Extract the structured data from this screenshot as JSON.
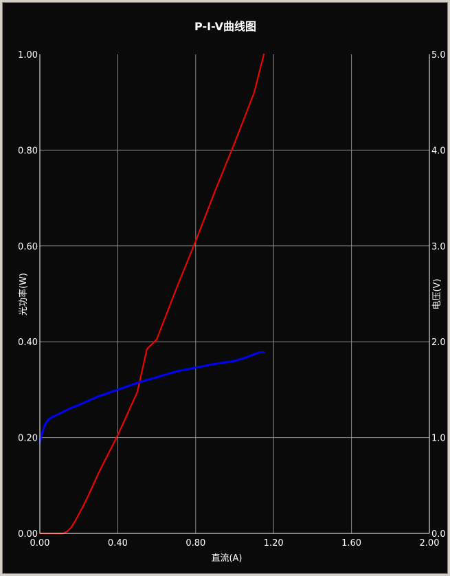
{
  "chart_data": {
    "type": "line",
    "title": "P-I-V曲线图",
    "xlabel": "直流(A)",
    "ylabel_left": "光功率(W)",
    "ylabel_right": "电压(V)",
    "xlim": [
      0.0,
      2.0
    ],
    "ylim_left": [
      0.0,
      1.0
    ],
    "ylim_right": [
      0.0,
      5.0
    ],
    "grid": true,
    "x_ticks": [
      "0.00",
      "0.40",
      "0.80",
      "1.20",
      "1.60",
      "2.00"
    ],
    "y_left_ticks": [
      "0.00",
      "0.20",
      "0.40",
      "0.60",
      "0.80",
      "1.00"
    ],
    "y_right_ticks": [
      "0.0",
      "1.0",
      "2.0",
      "3.0",
      "4.0",
      "5.0"
    ],
    "colors": {
      "background": "#0a0a0a",
      "grid": "#8c8c8c",
      "axis": "#ffffff",
      "power": "#ff0000",
      "voltage": "#0000ff"
    },
    "series": [
      {
        "axis": "left",
        "color": "#ff0000",
        "x": [
          0.0,
          0.12,
          0.14,
          0.16,
          0.18,
          0.2,
          0.22,
          0.25,
          0.3,
          0.35,
          0.4,
          0.45,
          0.5,
          0.55,
          0.6,
          0.7,
          0.8,
          0.9,
          1.0,
          1.1,
          1.15
        ],
        "y": [
          0.0,
          0.0,
          0.004,
          0.012,
          0.025,
          0.04,
          0.055,
          0.08,
          0.125,
          0.165,
          0.205,
          0.25,
          0.295,
          0.385,
          0.405,
          0.51,
          0.61,
          0.715,
          0.815,
          0.92,
          1.0
        ]
      },
      {
        "axis": "right",
        "color": "#0000ff",
        "x": [
          0.0,
          0.01,
          0.02,
          0.03,
          0.04,
          0.06,
          0.1,
          0.15,
          0.2,
          0.3,
          0.4,
          0.5,
          0.6,
          0.7,
          0.8,
          0.9,
          1.0,
          1.05,
          1.1,
          1.13,
          1.15
        ],
        "y": [
          0.95,
          1.03,
          1.1,
          1.15,
          1.18,
          1.21,
          1.25,
          1.3,
          1.34,
          1.43,
          1.5,
          1.57,
          1.63,
          1.69,
          1.73,
          1.77,
          1.8,
          1.83,
          1.87,
          1.89,
          1.89
        ]
      }
    ]
  }
}
